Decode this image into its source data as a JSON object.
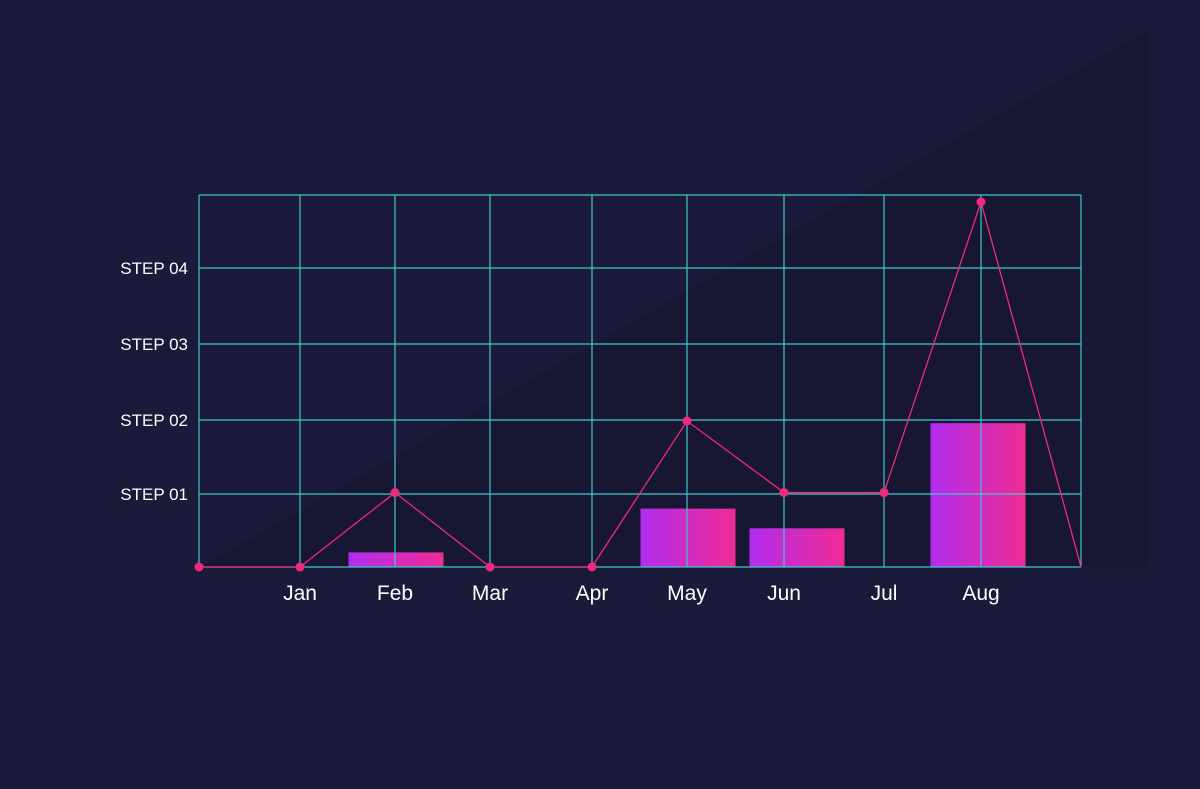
{
  "colors": {
    "background": "#1a1a3a",
    "shadow": "#171734",
    "grid": "#3fc6cf",
    "line": "#ee2a7b",
    "bar_start": "#b12cf0",
    "bar_end": "#f02c94",
    "text": "#ffffff"
  },
  "chart_data": {
    "type": "bar",
    "categories": [
      "Jan",
      "Feb",
      "Mar",
      "Apr",
      "May",
      "Jun",
      "Jul",
      "Aug"
    ],
    "y_ticks": [
      "STEP 01",
      "STEP 02",
      "STEP 03",
      "STEP 04"
    ],
    "bar_values": [
      0,
      0.2,
      0,
      0,
      0.8,
      0.53,
      0,
      1.97
    ],
    "line_x": [
      0,
      1,
      2,
      3,
      4,
      5,
      6,
      7,
      8,
      9
    ],
    "line_values": [
      0,
      0,
      1.02,
      0,
      0,
      2,
      1.02,
      1.02,
      5,
      0
    ],
    "ylim": [
      0,
      5
    ],
    "grid": true,
    "legend": "none"
  }
}
